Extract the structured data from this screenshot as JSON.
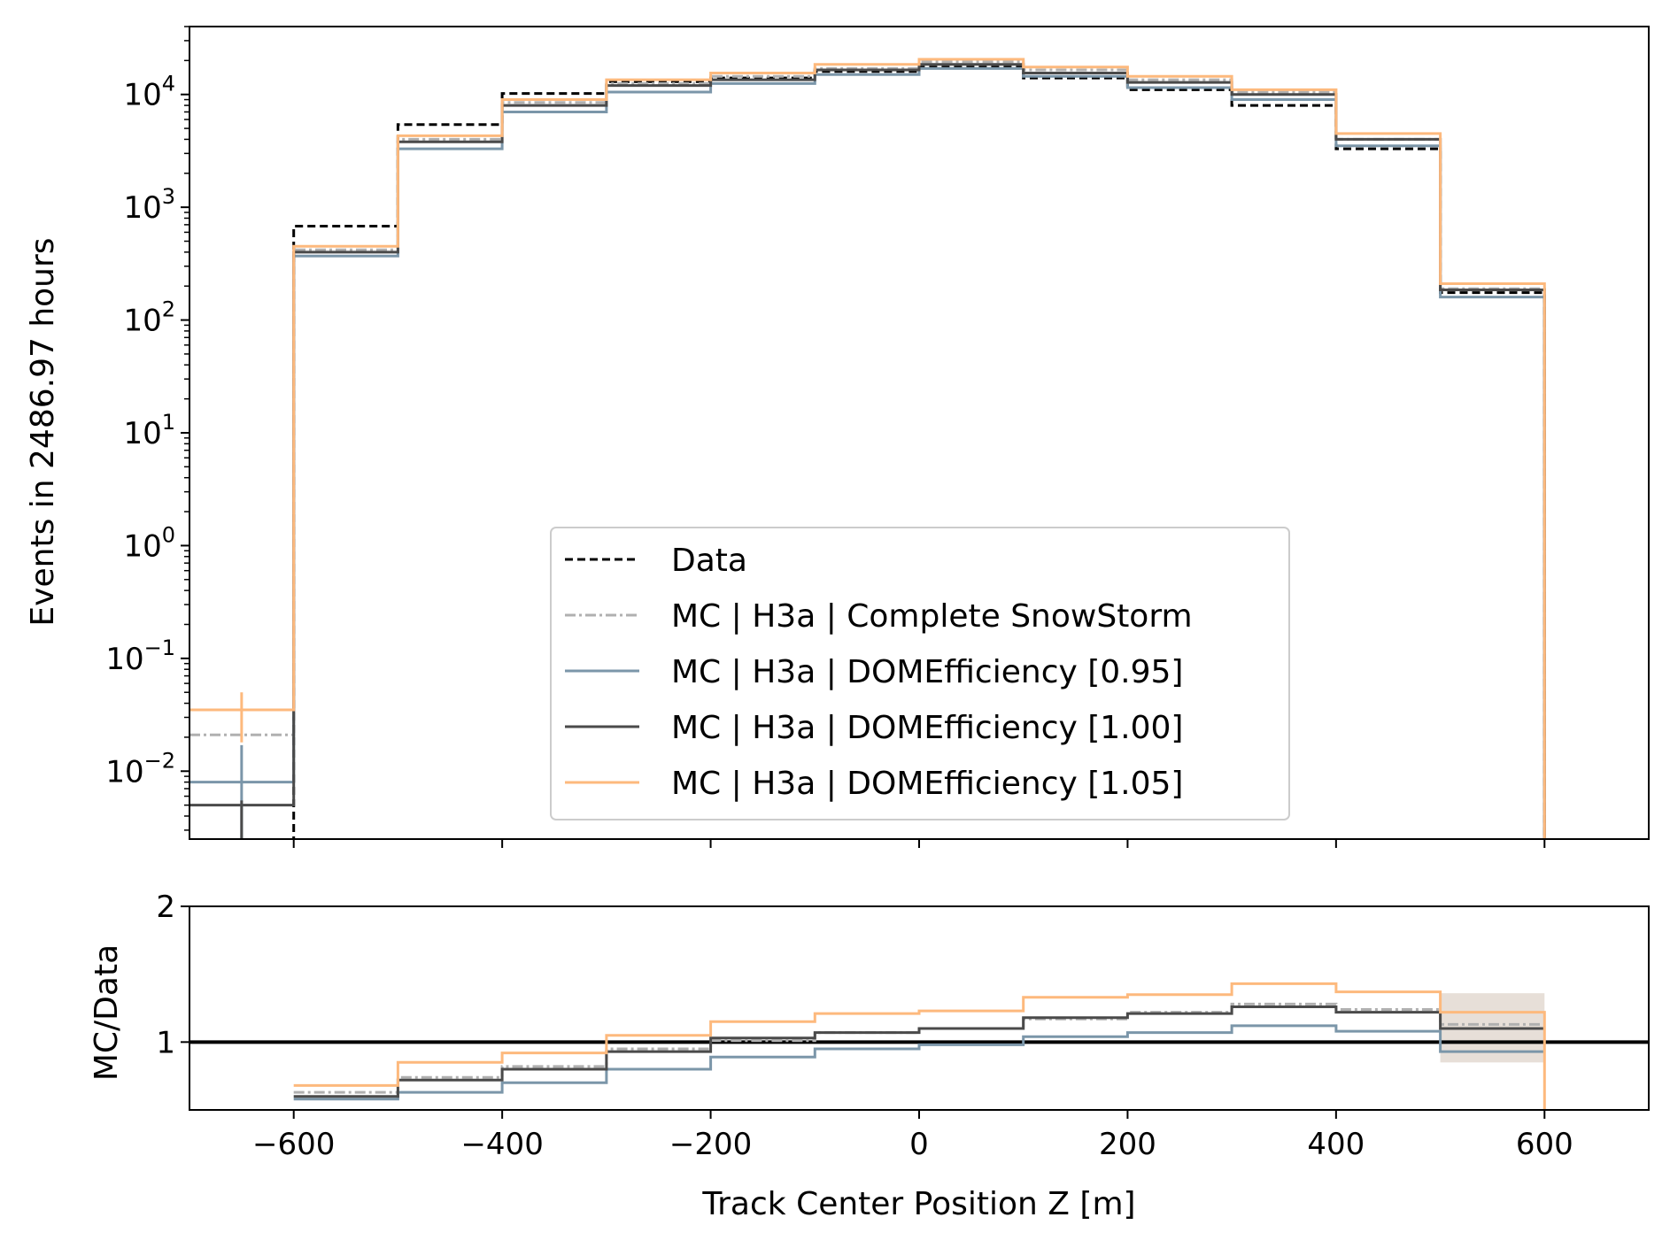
{
  "chart_data": {
    "type": "line",
    "drawstyle": "steps",
    "xlabel": "Track Center Position Z [m]",
    "xlim": [
      -700,
      700
    ],
    "x_ticks": [
      -600,
      -400,
      -200,
      0,
      200,
      400,
      600
    ],
    "x_tick_labels": [
      "−600",
      "−400",
      "−200",
      "0",
      "200",
      "400",
      "600"
    ],
    "bin_edges": [
      -700,
      -600,
      -500,
      -400,
      -300,
      -200,
      -100,
      0,
      100,
      200,
      300,
      400,
      500,
      600
    ],
    "bin_centers": [
      -650,
      -550,
      -450,
      -350,
      -250,
      -150,
      -50,
      50,
      150,
      250,
      350,
      450,
      550
    ],
    "main_panel": {
      "ylabel": "Events in 2486.97 hours",
      "yscale": "log",
      "ylim": [
        0.0025,
        40000
      ],
      "y_ticks": [
        0.01,
        0.1,
        1,
        10,
        100,
        1000,
        10000
      ],
      "y_tick_labels": [
        {
          "base": "10",
          "exp": "−2"
        },
        {
          "base": "10",
          "exp": "−1"
        },
        {
          "base": "10",
          "exp": "0"
        },
        {
          "base": "10",
          "exp": "1"
        },
        {
          "base": "10",
          "exp": "2"
        },
        {
          "base": "10",
          "exp": "3"
        },
        {
          "base": "10",
          "exp": "4"
        }
      ],
      "series": [
        {
          "name": "Data",
          "color": "#000000",
          "style": "dashed",
          "values": [
            null,
            680,
            5400,
            10200,
            13000,
            14000,
            16000,
            17500,
            14000,
            11000,
            8000,
            3300,
            175
          ]
        },
        {
          "name": "MC | H3a | Complete SnowStorm",
          "color": "#b0b0b0",
          "style": "dashdot",
          "values": [
            0.021,
            420,
            4000,
            8500,
            12500,
            14500,
            17000,
            19500,
            16500,
            13500,
            10500,
            4000,
            190
          ]
        },
        {
          "name": "MC | H3a | DOMEfficiency [0.95]",
          "color": "#7b96a9",
          "style": "solid",
          "values": [
            0.008,
            370,
            3300,
            7000,
            10500,
            12500,
            15000,
            17000,
            14500,
            11500,
            9000,
            3500,
            160
          ]
        },
        {
          "name": "MC | H3a | DOMEfficiency [1.00]",
          "color": "#4a4a4a",
          "style": "solid",
          "values": [
            0.005,
            400,
            3800,
            8000,
            12000,
            13500,
            16500,
            18500,
            15500,
            12800,
            10000,
            4000,
            185
          ]
        },
        {
          "name": "MC | H3a | DOMEfficiency [1.05]",
          "color": "#fdb97d",
          "style": "solid",
          "values": [
            0.035,
            450,
            4300,
            9000,
            13500,
            15500,
            18500,
            20500,
            17500,
            14500,
            11000,
            4500,
            210
          ]
        }
      ],
      "error_bars_at_x": -650,
      "error_bars": [
        {
          "series": "MC | H3a | DOMEfficiency [1.05]",
          "low": 0.018,
          "high": 0.05
        },
        {
          "series": "MC | H3a | DOMEfficiency [0.95]",
          "low": 0.0025,
          "high": 0.017
        },
        {
          "series": "MC | H3a | DOMEfficiency [1.00]",
          "low": 0.0025,
          "high": 0.0055
        }
      ]
    },
    "ratio_panel": {
      "ylabel": "MC/Data",
      "ylim": [
        0.5,
        2
      ],
      "y_ticks": [
        1,
        2
      ],
      "y_tick_labels": [
        "1",
        "2"
      ],
      "reference_line": 1,
      "series": [
        {
          "name": "MC | H3a | Complete SnowStorm",
          "color": "#b0b0b0",
          "style": "dashdot",
          "values": [
            null,
            0.63,
            0.74,
            0.82,
            0.95,
            1.01,
            1.07,
            1.1,
            1.17,
            1.22,
            1.28,
            1.24,
            1.13
          ]
        },
        {
          "name": "MC | H3a | DOMEfficiency [0.95]",
          "color": "#7b96a9",
          "style": "solid",
          "values": [
            null,
            0.58,
            0.63,
            0.7,
            0.8,
            0.89,
            0.95,
            0.98,
            1.04,
            1.07,
            1.12,
            1.08,
            0.93
          ]
        },
        {
          "name": "MC | H3a | DOMEfficiency [1.00]",
          "color": "#4a4a4a",
          "style": "solid",
          "values": [
            null,
            0.6,
            0.72,
            0.8,
            0.93,
            1.03,
            1.07,
            1.1,
            1.18,
            1.21,
            1.26,
            1.22,
            1.1
          ]
        },
        {
          "name": "MC | H3a | DOMEfficiency [1.05]",
          "color": "#fdb97d",
          "style": "solid",
          "values": [
            null,
            0.68,
            0.85,
            0.92,
            1.05,
            1.15,
            1.21,
            1.23,
            1.33,
            1.35,
            1.43,
            1.37,
            1.22
          ]
        }
      ],
      "last_bin_band": {
        "low": 0.85,
        "high": 1.36
      }
    },
    "legend": {
      "placement": "lower-center",
      "entries": [
        "Data",
        "MC | H3a | Complete SnowStorm",
        "MC | H3a | DOMEfficiency [0.95]",
        "MC | H3a | DOMEfficiency [1.00]",
        "MC | H3a | DOMEfficiency [1.05]"
      ]
    }
  }
}
